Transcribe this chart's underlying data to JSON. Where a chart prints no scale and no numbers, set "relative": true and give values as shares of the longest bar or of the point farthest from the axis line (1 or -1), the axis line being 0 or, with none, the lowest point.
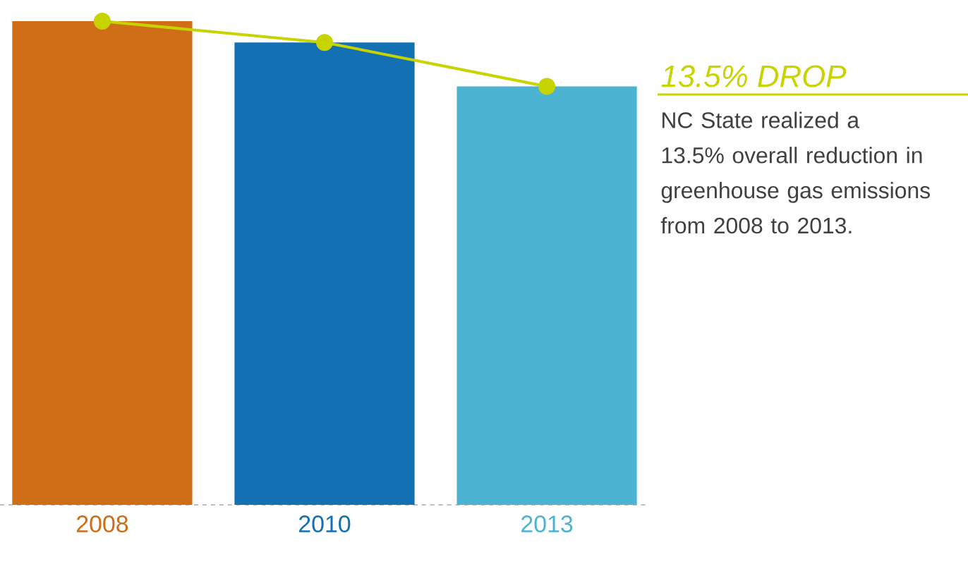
{
  "chart_data": {
    "type": "bar",
    "relative": true,
    "categories": [
      "2008",
      "2010",
      "2013"
    ],
    "series": [
      {
        "colors": [
          "#cf6e17",
          "#1270b3",
          "#4db3d2"
        ],
        "values": [
          1,
          0.956,
          0.865
        ]
      },
      {
        "type": "line",
        "color": "#c8d400",
        "marker": "circle",
        "values": [
          1,
          0.956,
          0.865
        ]
      }
    ],
    "annotations": [
      "13.5% DROP",
      "NC State realized a 13.5% overall reduction in greenhouse gas emissions from 2008 to 2013."
    ]
  }
}
